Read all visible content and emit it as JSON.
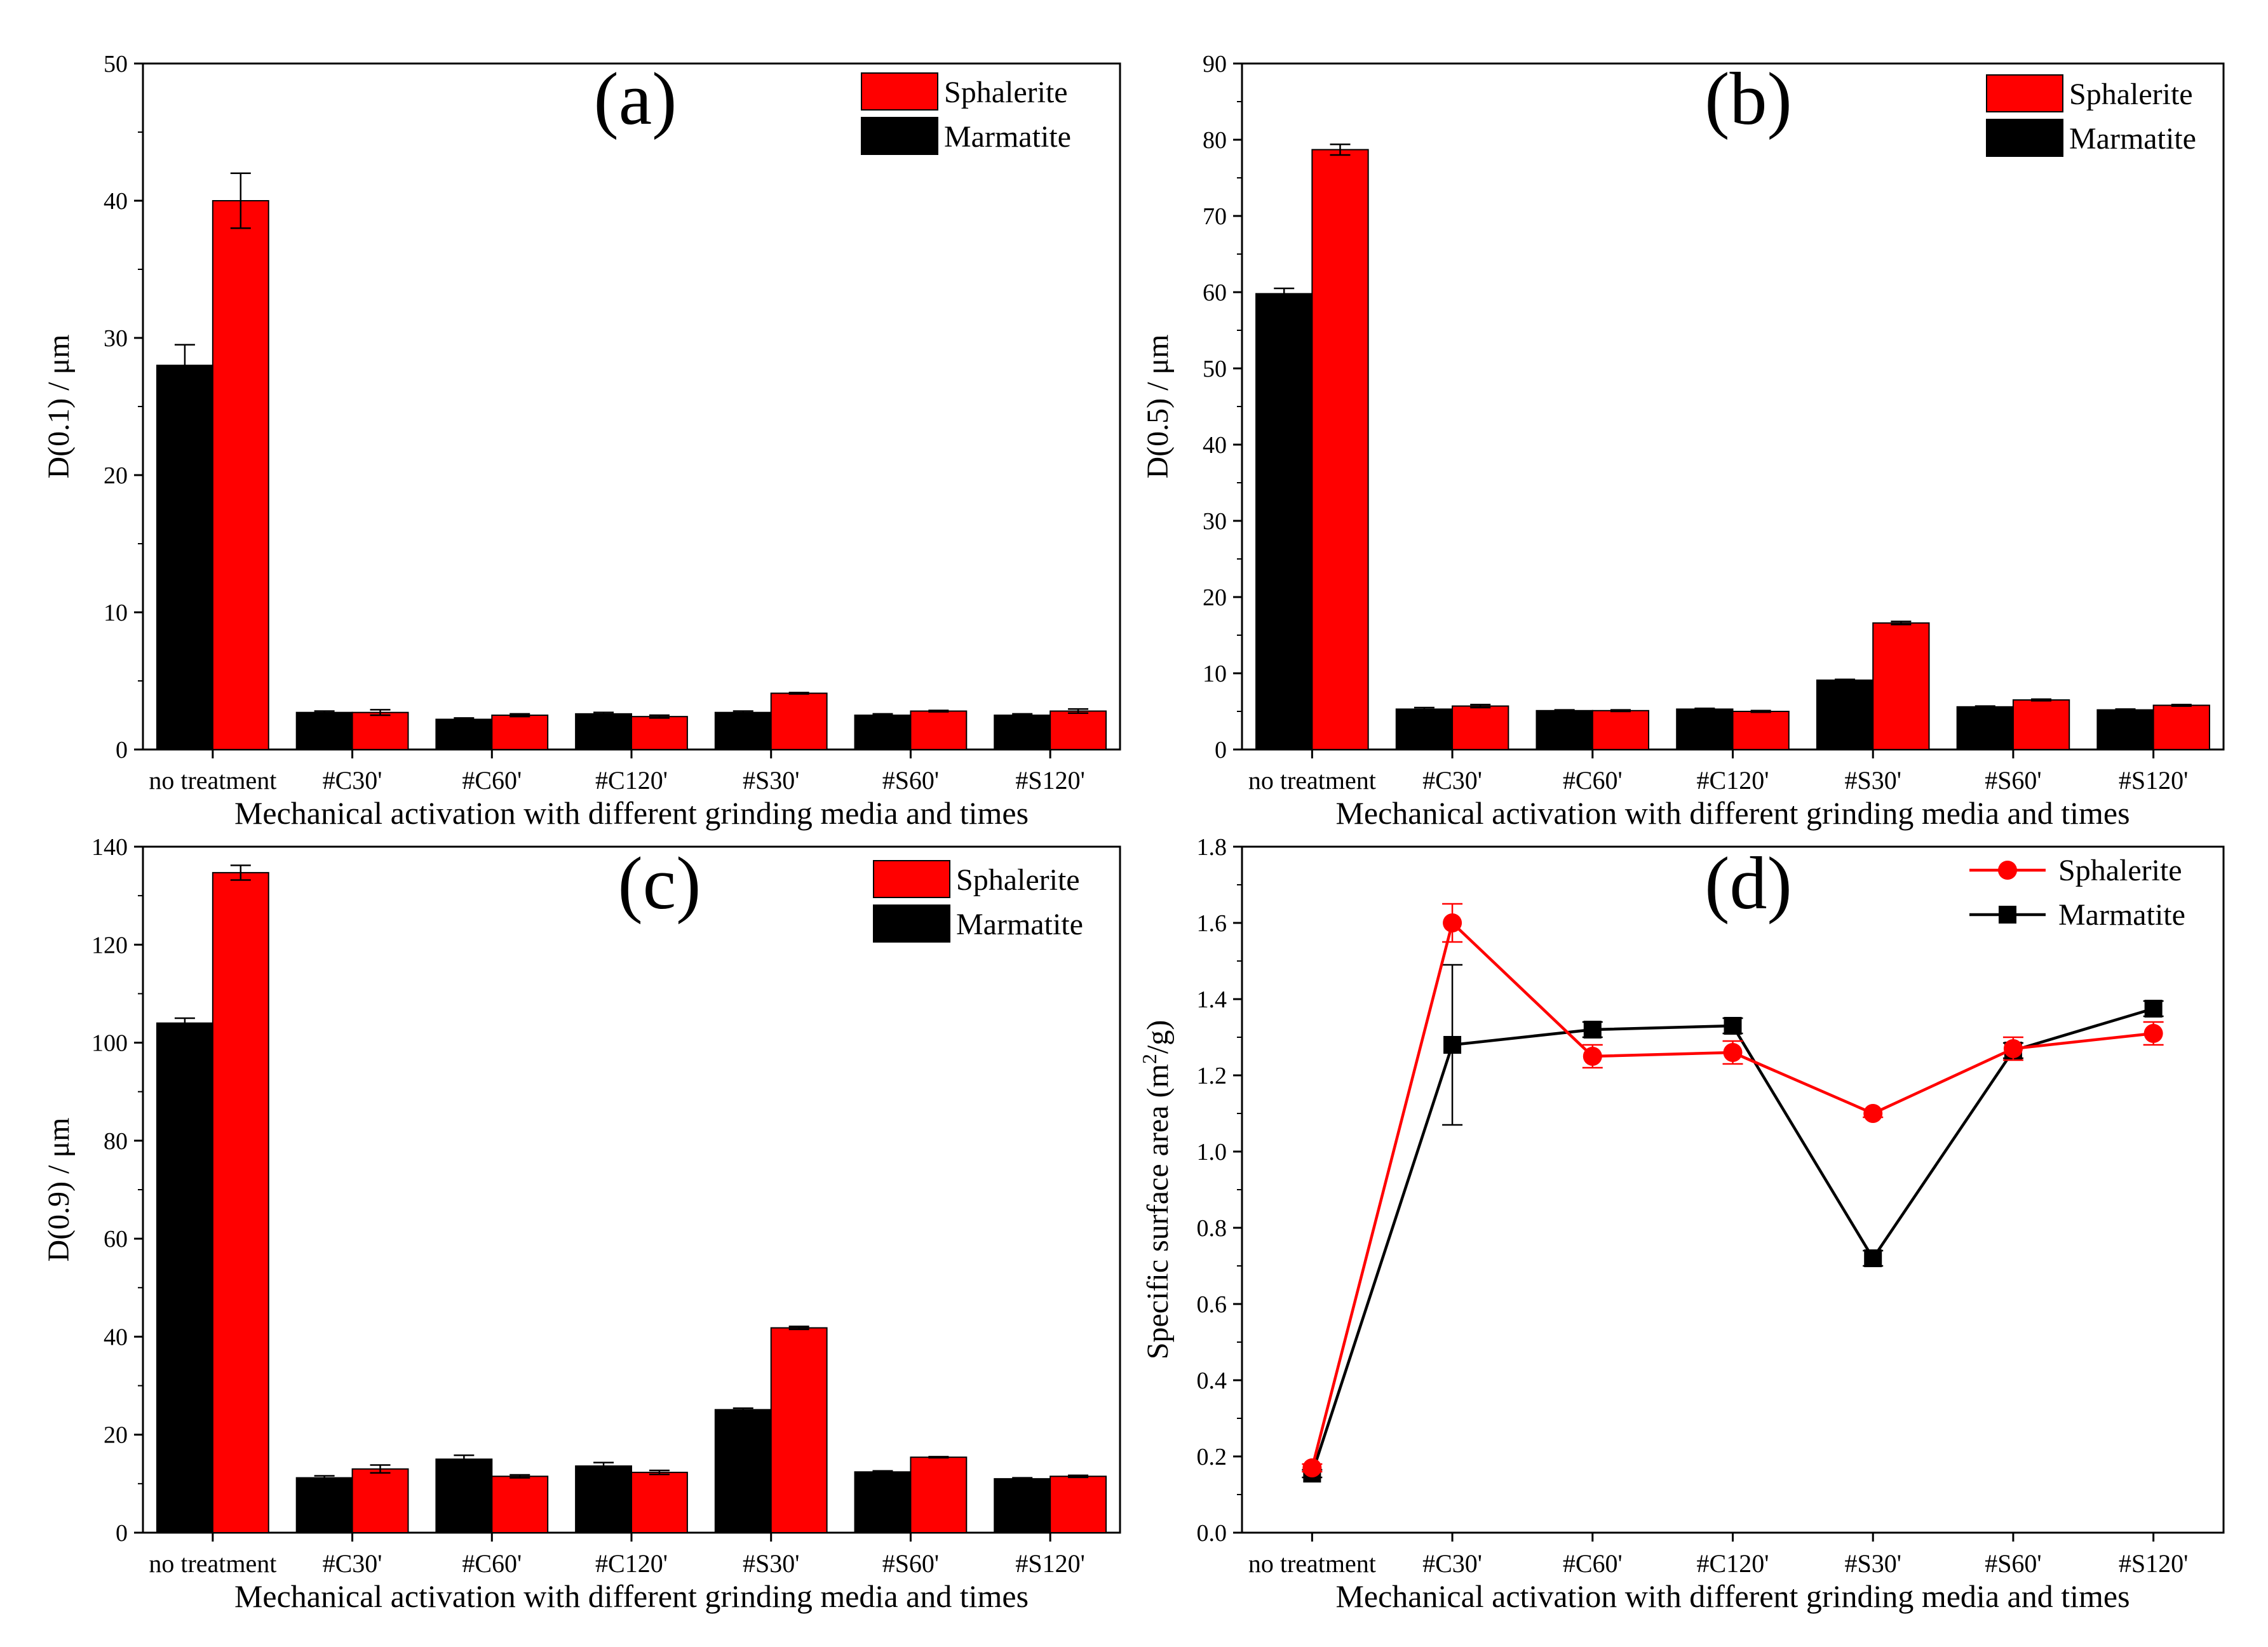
{
  "colors": {
    "sphalerite": "#ff0000",
    "marmatite": "#000000",
    "axis": "#000000",
    "background": "#ffffff"
  },
  "chart_data": [
    {
      "id": "a",
      "type": "bar",
      "tag": "(a)",
      "title": "",
      "xlabel": "Mechanical activation with different grinding media and times",
      "ylabel": "D(0.1) / μm",
      "ylim": [
        0,
        50
      ],
      "yticks": [
        0,
        10,
        20,
        30,
        40,
        50
      ],
      "categories": [
        "no treatment",
        "#C30'",
        "#C60'",
        "#C120'",
        "#S30'",
        "#S60'",
        "#S120'"
      ],
      "legend": [
        "Sphalerite",
        "Marmatite"
      ],
      "series": [
        {
          "name": "Marmatite",
          "color": "#000000",
          "values": [
            28.0,
            2.7,
            2.2,
            2.6,
            2.7,
            2.5,
            2.5
          ],
          "errors": [
            1.5,
            0.1,
            0.1,
            0.1,
            0.1,
            0.1,
            0.1
          ]
        },
        {
          "name": "Sphalerite",
          "color": "#ff0000",
          "values": [
            40.0,
            2.7,
            2.5,
            2.4,
            4.1,
            2.8,
            2.8
          ],
          "errors": [
            2.0,
            0.2,
            0.1,
            0.1,
            0.05,
            0.05,
            0.15
          ]
        }
      ]
    },
    {
      "id": "b",
      "type": "bar",
      "tag": "(b)",
      "title": "",
      "xlabel": "Mechanical activation with different grinding media and times",
      "ylabel": "D(0.5) / μm",
      "ylim": [
        0,
        90
      ],
      "yticks": [
        0,
        10,
        20,
        30,
        40,
        50,
        60,
        70,
        80,
        90
      ],
      "categories": [
        "no treatment",
        "#C30'",
        "#C60'",
        "#C120'",
        "#S30'",
        "#S60'",
        "#S120'"
      ],
      "legend": [
        "Sphalerite",
        "Marmatite"
      ],
      "series": [
        {
          "name": "Marmatite",
          "color": "#000000",
          "values": [
            59.8,
            5.3,
            5.1,
            5.3,
            9.1,
            5.6,
            5.2
          ],
          "errors": [
            0.7,
            0.2,
            0.1,
            0.1,
            0.1,
            0.1,
            0.1
          ]
        },
        {
          "name": "Sphalerite",
          "color": "#ff0000",
          "values": [
            78.7,
            5.7,
            5.1,
            5.0,
            16.6,
            6.5,
            5.8
          ],
          "errors": [
            0.7,
            0.2,
            0.1,
            0.1,
            0.2,
            0.1,
            0.1
          ]
        }
      ]
    },
    {
      "id": "c",
      "type": "bar",
      "tag": "(c)",
      "title": "",
      "xlabel": "Mechanical activation with different grinding media and times",
      "ylabel": "D(0.9) / μm",
      "ylim": [
        0,
        140
      ],
      "yticks": [
        0,
        20,
        40,
        60,
        80,
        100,
        120,
        140
      ],
      "categories": [
        "no treatment",
        "#C30'",
        "#C60'",
        "#C120'",
        "#S30'",
        "#S60'",
        "#S120'"
      ],
      "legend": [
        "Sphalerite",
        "Marmatite"
      ],
      "series": [
        {
          "name": "Marmatite",
          "color": "#000000",
          "values": [
            104.0,
            11.2,
            15.0,
            13.6,
            25.1,
            12.4,
            11.0
          ],
          "errors": [
            1.0,
            0.4,
            0.8,
            0.7,
            0.3,
            0.2,
            0.2
          ]
        },
        {
          "name": "Sphalerite",
          "color": "#ff0000",
          "values": [
            134.7,
            13.0,
            11.5,
            12.3,
            41.8,
            15.4,
            11.5
          ],
          "errors": [
            1.5,
            0.8,
            0.3,
            0.4,
            0.3,
            0.1,
            0.2
          ]
        }
      ]
    },
    {
      "id": "d",
      "type": "line",
      "tag": "(d)",
      "title": "",
      "xlabel": "Mechanical activation with different grinding media and times",
      "ylabel_main": "Specific surface area (m",
      "ylabel_sup": "2",
      "ylabel_end": "/g)",
      "ylim": [
        0.0,
        1.8
      ],
      "yticks": [
        "0.0",
        "0.2",
        "0.4",
        "0.6",
        "0.8",
        "1.0",
        "1.2",
        "1.4",
        "1.6",
        "1.8"
      ],
      "categories": [
        "no treatment",
        "#C30'",
        "#C60'",
        "#C120'",
        "#S30'",
        "#S60'",
        "#S120'"
      ],
      "legend": [
        "Sphalerite",
        "Marmatite"
      ],
      "series": [
        {
          "name": "Sphalerite",
          "color": "#ff0000",
          "marker": "circle",
          "values": [
            0.17,
            1.6,
            1.25,
            1.26,
            1.1,
            1.27,
            1.31
          ],
          "errors": [
            0.01,
            0.05,
            0.03,
            0.03,
            0.01,
            0.03,
            0.03
          ]
        },
        {
          "name": "Marmatite",
          "color": "#000000",
          "marker": "square",
          "values": [
            0.155,
            1.28,
            1.32,
            1.33,
            0.72,
            1.265,
            1.375
          ],
          "errors": [
            0.01,
            0.21,
            0.02,
            0.02,
            0.02,
            0.02,
            0.02
          ]
        }
      ]
    }
  ]
}
